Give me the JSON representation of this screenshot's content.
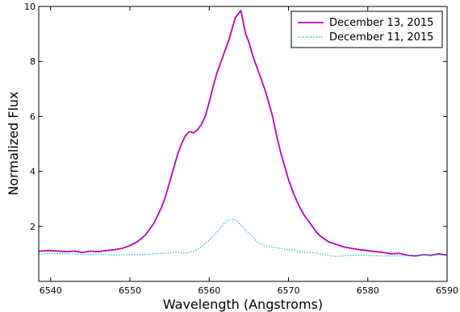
{
  "chart_data": {
    "type": "line",
    "title": "",
    "xlabel": "Wavelength (Angstroms)",
    "ylabel": "Normalized Flux",
    "xlim": [
      6538.5,
      6590
    ],
    "ylim": [
      0,
      10
    ],
    "xticks": [
      6540,
      6550,
      6560,
      6570,
      6580,
      6590
    ],
    "yticks": [
      2,
      4,
      6,
      8,
      10
    ],
    "grid": false,
    "legend": "top-right",
    "series": [
      {
        "name": "December 13, 2015",
        "color": "#bf00bf",
        "style": "solid",
        "x": [
          6538.5,
          6540,
          6541,
          6542,
          6543,
          6544,
          6545,
          6546,
          6547,
          6548,
          6549,
          6550,
          6551,
          6552,
          6553,
          6554,
          6554.5,
          6555,
          6555.5,
          6556,
          6556.5,
          6557,
          6557.5,
          6558,
          6558.5,
          6559,
          6559.5,
          6560,
          6560.5,
          6561,
          6561.5,
          6562,
          6562.5,
          6563,
          6563.3,
          6563.6,
          6564,
          6564.3,
          6564.6,
          6565,
          6565.5,
          6566,
          6566.5,
          6567,
          6567.5,
          6568,
          6568.5,
          6569,
          6569.5,
          6570,
          6570.5,
          6571,
          6571.5,
          6572,
          6572.5,
          6573,
          6573.5,
          6574,
          6574.5,
          6575,
          6576,
          6577,
          6578,
          6579,
          6580,
          6581,
          6582,
          6583,
          6584,
          6585,
          6586,
          6587,
          6588,
          6589,
          6590
        ],
        "values": [
          1.1,
          1.12,
          1.1,
          1.08,
          1.1,
          1.05,
          1.1,
          1.08,
          1.12,
          1.15,
          1.2,
          1.3,
          1.45,
          1.7,
          2.1,
          2.7,
          3.1,
          3.6,
          4.1,
          4.6,
          5.0,
          5.3,
          5.45,
          5.4,
          5.5,
          5.7,
          6.0,
          6.5,
          7.1,
          7.6,
          8.0,
          8.4,
          8.8,
          9.3,
          9.6,
          9.7,
          9.85,
          9.4,
          9.0,
          8.7,
          8.2,
          7.8,
          7.4,
          7.0,
          6.5,
          6.0,
          5.3,
          4.7,
          4.2,
          3.7,
          3.3,
          2.95,
          2.65,
          2.4,
          2.2,
          2.0,
          1.8,
          1.65,
          1.55,
          1.45,
          1.35,
          1.25,
          1.2,
          1.15,
          1.12,
          1.08,
          1.05,
          1.0,
          1.02,
          0.95,
          0.92,
          0.97,
          0.95,
          1.0,
          0.95
        ]
      },
      {
        "name": "December 11, 2015",
        "color": "#00bfbf",
        "style": "dotted",
        "x": [
          6538.5,
          6540,
          6542,
          6544,
          6546,
          6548,
          6550,
          6552,
          6554,
          6556,
          6557,
          6558,
          6559,
          6560,
          6561,
          6562,
          6562.5,
          6563,
          6563.5,
          6564,
          6565,
          6566,
          6567,
          6568,
          6569,
          6570,
          6571,
          6572,
          6573,
          6574,
          6575,
          6576,
          6578,
          6580,
          6582,
          6584,
          6586,
          6588,
          6590
        ],
        "values": [
          1.0,
          1.02,
          1.0,
          0.98,
          1.0,
          0.95,
          0.97,
          0.98,
          1.02,
          1.05,
          1.02,
          1.1,
          1.25,
          1.5,
          1.8,
          2.15,
          2.25,
          2.25,
          2.2,
          2.05,
          1.75,
          1.45,
          1.3,
          1.25,
          1.2,
          1.15,
          1.12,
          1.05,
          1.05,
          1.0,
          0.95,
          0.9,
          0.95,
          0.95,
          0.92,
          0.93,
          0.95,
          0.97,
          0.95
        ]
      }
    ]
  }
}
